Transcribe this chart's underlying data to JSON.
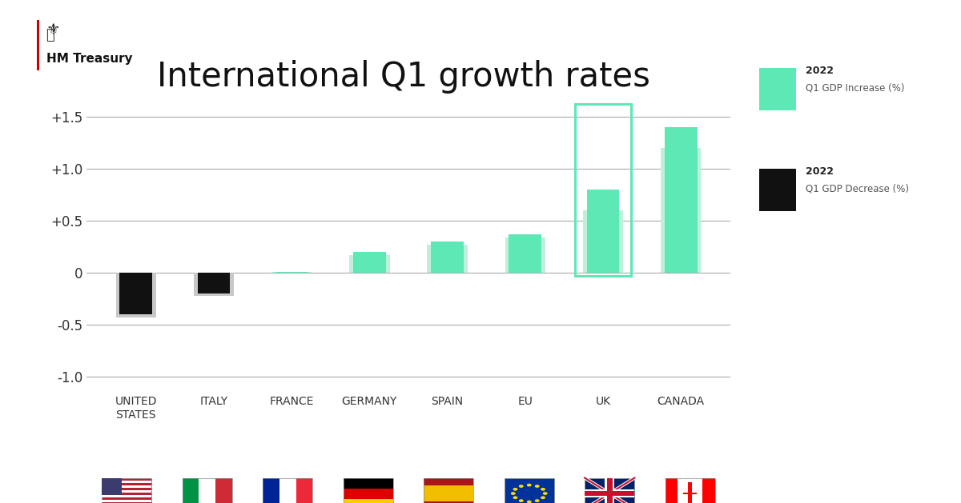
{
  "title": "International Q1 growth rates",
  "categories": [
    "UNITED\nSTATES",
    "ITALY",
    "FRANCE",
    "GERMANY",
    "SPAIN",
    "EU",
    "UK",
    "CANADA"
  ],
  "primary_values": [
    -0.4,
    -0.2,
    0.01,
    0.2,
    0.3,
    0.37,
    0.8,
    1.4
  ],
  "secondary_values": [
    -0.43,
    -0.22,
    0.01,
    0.17,
    0.27,
    0.34,
    0.6,
    1.2
  ],
  "positive_color": "#5de8b5",
  "positive_light_color": "#bff0dc",
  "negative_color": "#111111",
  "negative_light_color": "#c8c8c8",
  "highlight_country_index": 6,
  "highlight_color": "#5de8b5",
  "ylim": [
    -1.15,
    1.75
  ],
  "yticks": [
    -1.0,
    -0.5,
    0.0,
    0.5,
    1.0,
    1.5
  ],
  "ytick_labels": [
    "-1.0",
    "-0.5",
    "0",
    "+0.5",
    "+1.0",
    "+1.5"
  ],
  "legend_increase_label_line1": "2022",
  "legend_increase_label_line2": "Q1 GDP Increase (%)",
  "legend_decrease_label_line1": "2022",
  "legend_decrease_label_line2": "Q1 GDP Decrease (%)",
  "background_color": "#ffffff",
  "grid_color": "#aaaaaa",
  "title_fontsize": 30,
  "tick_fontsize": 12,
  "label_fontsize": 10,
  "bar_width": 0.42,
  "secondary_bar_width": 0.52
}
